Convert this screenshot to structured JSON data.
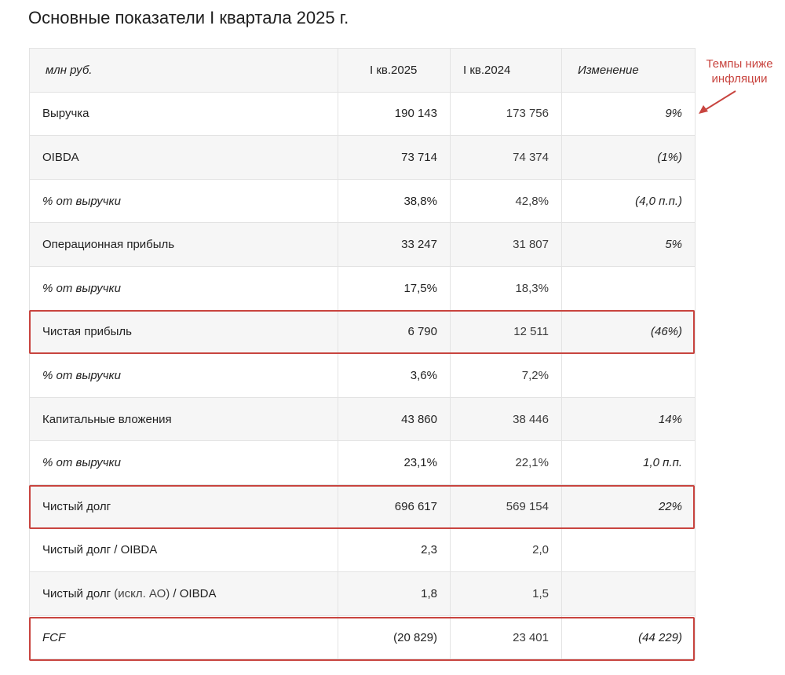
{
  "title": "Основные показатели I квартала 2025 г.",
  "table": {
    "headers": {
      "label": "млн руб.",
      "current": "I кв.2025",
      "previous": "I кв.2024",
      "change": "Изменение"
    },
    "rows": [
      {
        "label": "Выручка",
        "current": "190 143",
        "previous": "173 756",
        "change": "9%"
      },
      {
        "label": "OIBDA",
        "current": "73 714",
        "previous": "74 374",
        "change": "(1%)"
      },
      {
        "label": "% от выручки",
        "current": "38,8%",
        "previous": "42,8%",
        "change": "(4,0 п.п.)"
      },
      {
        "label": "Операционная прибыль",
        "current": "33 247",
        "previous": "31 807",
        "change": "5%"
      },
      {
        "label": "% от выручки",
        "current": "17,5%",
        "previous": "18,3%",
        "change": ""
      },
      {
        "label": "Чистая прибыль",
        "current": "6 790",
        "previous": "12 511",
        "change": "(46%)"
      },
      {
        "label": "% от выручки",
        "current": "3,6%",
        "previous": "7,2%",
        "change": ""
      },
      {
        "label": "Капитальные вложения",
        "current": "43 860",
        "previous": "38 446",
        "change": "14%"
      },
      {
        "label": "% от выручки",
        "current": "23,1%",
        "previous": "22,1%",
        "change": "1,0 п.п."
      },
      {
        "label": "Чистый долг",
        "current": "696 617",
        "previous": "569 154",
        "change": "22%"
      },
      {
        "label": "Чистый долг / OIBDA",
        "current": "2,3",
        "previous": "2,0",
        "change": ""
      },
      {
        "label_prefix": "Чистый долг ",
        "label_note": "(искл. АО)",
        "label_suffix": " / OIBDA",
        "current": "1,8",
        "previous": "1,5",
        "change": ""
      },
      {
        "label": "FCF",
        "current": "(20 829)",
        "previous": "23 401",
        "change": "(44 229)"
      }
    ]
  },
  "annotation": {
    "text_line1": "Темпы ниже",
    "text_line2": "инфляции"
  },
  "colors": {
    "highlight": "#c8443f",
    "shade": "#f6f6f6",
    "border": "#e3e3e3"
  }
}
